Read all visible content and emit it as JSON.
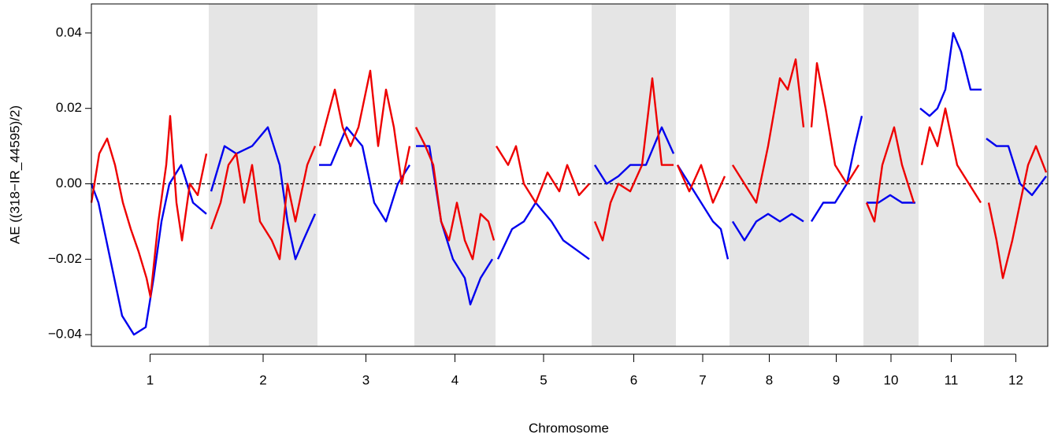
{
  "chart_data": {
    "type": "line",
    "xlabel": "Chromosome",
    "ylabel": "AE ((318−IR_44595)/2)",
    "categories": [
      "1",
      "2",
      "3",
      "4",
      "5",
      "6",
      "7",
      "8",
      "9",
      "10",
      "11",
      "12"
    ],
    "chromosome_bounds": [
      0,
      149,
      287,
      410,
      513,
      635,
      742,
      810,
      911,
      980,
      1050,
      1133,
      1214
    ],
    "shaded": [
      false,
      true,
      false,
      true,
      false,
      true,
      false,
      true,
      false,
      true,
      false,
      true
    ],
    "band_color": "#e5e5e5",
    "xlim": [
      0,
      1214
    ],
    "ylim": [
      -0.0431,
      0.0477
    ],
    "yticks": [
      {
        "value": -0.04,
        "label": "−0.04"
      },
      {
        "value": -0.02,
        "label": "−0.02"
      },
      {
        "value": 0,
        "label": "0.00"
      },
      0.02,
      0.04
    ],
    "hline": 0,
    "series": [
      {
        "name": "blue",
        "color": "#0000ee",
        "x": [
          0,
          9,
          19,
          29,
          39,
          54,
          69,
          79,
          89,
          99,
          114,
          129,
          146,
          149,
          152,
          169,
          184,
          204,
          224,
          239,
          249,
          259,
          269,
          284,
          287,
          289,
          304,
          324,
          344,
          359,
          374,
          389,
          404,
          410,
          412,
          429,
          444,
          459,
          474,
          481,
          494,
          509,
          513,
          516,
          534,
          549,
          564,
          584,
          599,
          619,
          632,
          635,
          639,
          654,
          669,
          684,
          704,
          724,
          739,
          742,
          744,
          759,
          774,
          789,
          799,
          808,
          810,
          814,
          829,
          844,
          859,
          874,
          889,
          904,
          911,
          914,
          929,
          944,
          959,
          969,
          978,
          980,
          984,
          999,
          1014,
          1029,
          1046,
          1050,
          1052,
          1064,
          1074,
          1084,
          1094,
          1104,
          1116,
          1130,
          1133,
          1136,
          1149,
          1164,
          1179,
          1194,
          1212
        ],
        "values": [
          0.0,
          -0.005,
          -0.015,
          -0.025,
          -0.035,
          -0.04,
          -0.038,
          -0.025,
          -0.01,
          0.0,
          0.005,
          -0.005,
          -0.008,
          null,
          -0.002,
          0.01,
          0.008,
          0.01,
          0.015,
          0.005,
          -0.01,
          -0.02,
          -0.015,
          -0.008,
          null,
          0.005,
          0.005,
          0.015,
          0.01,
          -0.005,
          -0.01,
          0.0,
          0.005,
          null,
          0.01,
          0.01,
          -0.01,
          -0.02,
          -0.025,
          -0.032,
          -0.025,
          -0.02,
          null,
          -0.02,
          -0.012,
          -0.01,
          -0.005,
          -0.01,
          -0.015,
          -0.018,
          -0.02,
          null,
          0.005,
          0.0,
          0.002,
          0.005,
          0.005,
          0.015,
          0.008,
          null,
          0.005,
          0.0,
          -0.005,
          -0.01,
          -0.012,
          -0.02,
          null,
          -0.01,
          -0.015,
          -0.01,
          -0.008,
          -0.01,
          -0.008,
          -0.01,
          null,
          -0.01,
          -0.005,
          -0.005,
          0.0,
          0.01,
          0.018,
          null,
          -0.005,
          -0.005,
          -0.003,
          -0.005,
          -0.005,
          null,
          0.02,
          0.018,
          0.02,
          0.025,
          0.04,
          0.035,
          0.025,
          0.025,
          null,
          0.012,
          0.01,
          0.01,
          0.0,
          -0.003,
          0.002
        ]
      },
      {
        "name": "red",
        "color": "#ee0000",
        "x": [
          0,
          10,
          20,
          30,
          40,
          50,
          60,
          70,
          75,
          85,
          95,
          100,
          108,
          115,
          125,
          135,
          146,
          149,
          152,
          164,
          174,
          184,
          194,
          204,
          214,
          229,
          239,
          249,
          259,
          274,
          284,
          287,
          290,
          309,
          319,
          329,
          339,
          354,
          364,
          374,
          384,
          394,
          404,
          410,
          412,
          424,
          434,
          444,
          454,
          464,
          474,
          484,
          494,
          504,
          511,
          513,
          514,
          529,
          539,
          549,
          564,
          579,
          594,
          604,
          619,
          632,
          635,
          639,
          649,
          659,
          669,
          684,
          699,
          712,
          724,
          739,
          742,
          744,
          759,
          774,
          789,
          804,
          810,
          814,
          829,
          844,
          859,
          874,
          884,
          894,
          904,
          911,
          914,
          921,
          932,
          944,
          959,
          974,
          980,
          984,
          994,
          1004,
          1019,
          1029,
          1044,
          1050,
          1054,
          1064,
          1074,
          1084,
          1099,
          1114,
          1129,
          1133,
          1139,
          1149,
          1157,
          1169,
          1179,
          1189,
          1199,
          1212
        ],
        "values": [
          -0.005,
          0.008,
          0.012,
          0.005,
          -0.005,
          -0.012,
          -0.018,
          -0.025,
          -0.03,
          -0.01,
          0.005,
          0.018,
          -0.005,
          -0.015,
          0.0,
          -0.003,
          0.008,
          null,
          -0.012,
          -0.005,
          0.005,
          0.008,
          -0.005,
          0.005,
          -0.01,
          -0.015,
          -0.02,
          0.0,
          -0.01,
          0.005,
          0.01,
          null,
          0.01,
          0.025,
          0.015,
          0.01,
          0.015,
          0.03,
          0.01,
          0.025,
          0.015,
          0.0,
          0.01,
          null,
          0.015,
          0.01,
          0.005,
          -0.01,
          -0.015,
          -0.005,
          -0.015,
          -0.02,
          -0.008,
          -0.01,
          -0.015,
          null,
          0.01,
          0.005,
          0.01,
          0.0,
          -0.005,
          0.003,
          -0.002,
          0.005,
          -0.003,
          0.0,
          null,
          -0.01,
          -0.015,
          -0.005,
          0.0,
          -0.002,
          0.005,
          0.028,
          0.005,
          0.005,
          null,
          0.005,
          -0.002,
          0.005,
          -0.005,
          0.002,
          null,
          0.005,
          0.0,
          -0.005,
          0.01,
          0.028,
          0.025,
          0.033,
          0.015,
          null,
          0.015,
          0.032,
          0.02,
          0.005,
          0.0,
          0.005,
          null,
          -0.005,
          -0.01,
          0.005,
          0.015,
          0.005,
          -0.005,
          null,
          0.005,
          0.015,
          0.01,
          0.02,
          0.005,
          0.0,
          -0.005,
          null,
          -0.005,
          -0.015,
          -0.025,
          -0.015,
          -0.005,
          0.005,
          0.01,
          0.003
        ]
      }
    ]
  }
}
